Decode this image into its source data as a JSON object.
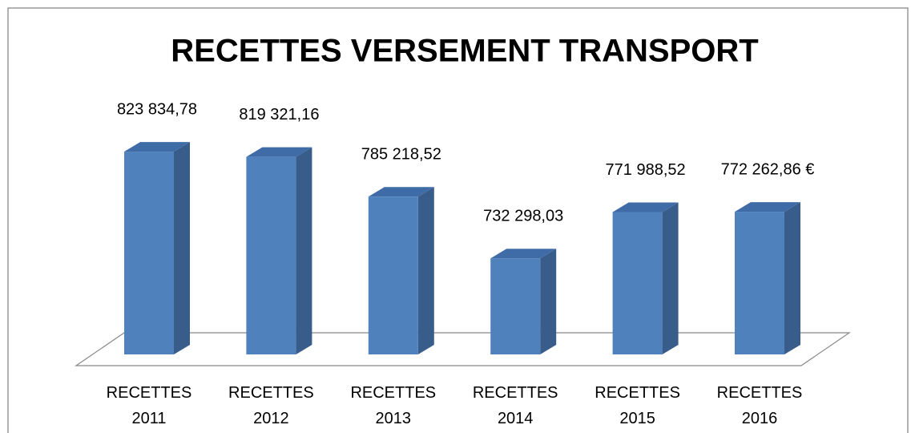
{
  "chart_data": {
    "type": "bar3d",
    "title": "RECETTES  VERSEMENT TRANSPORT",
    "categories": [
      "RECETTES 2011",
      "RECETTES 2012",
      "RECETTES 2013",
      "RECETTES 2014",
      "RECETTES 2015",
      "RECETTES 2016"
    ],
    "values": [
      823834.78,
      819321.16,
      785218.52,
      732298.03,
      771988.52,
      772262.86
    ],
    "value_labels": [
      "823 834,78",
      "819 321,16",
      "785 218,52",
      "732 298,03",
      "771 988,52",
      "772 262,86 €"
    ],
    "color": "#4f81bd",
    "ylim": [
      650000,
      850000
    ]
  }
}
